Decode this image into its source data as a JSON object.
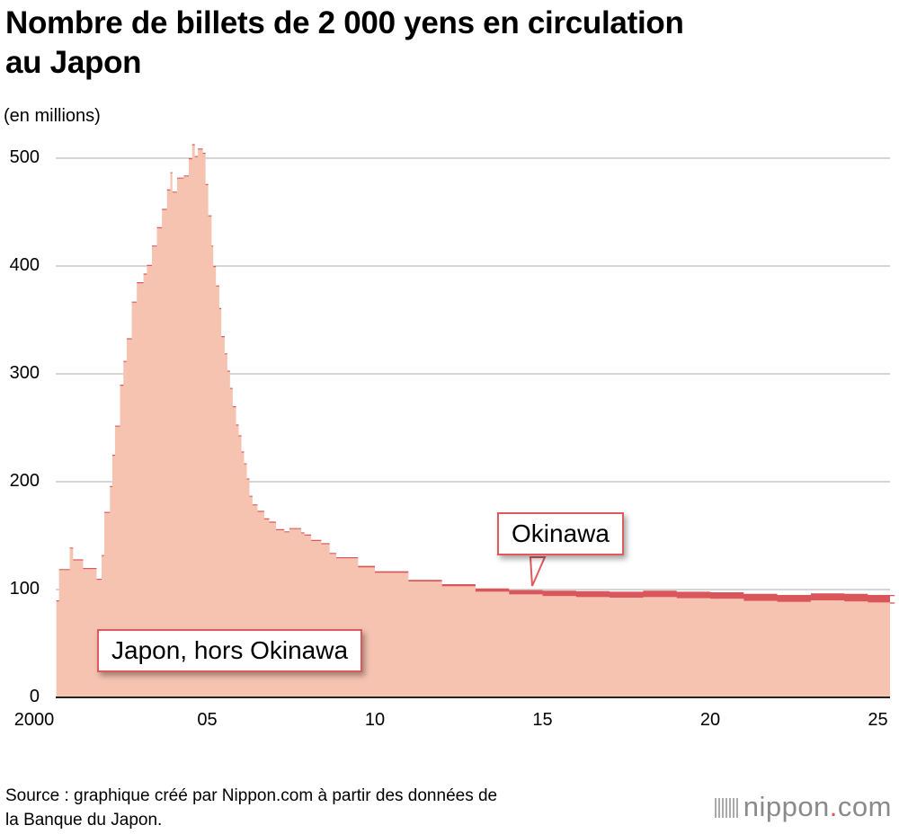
{
  "chart_data": {
    "type": "area",
    "stacked": true,
    "title": "Nombre de billets de 2 000 yens en circulation au Japon",
    "ylabel": "(en millions)",
    "ylim": [
      0,
      520
    ],
    "yticks": [
      "0",
      "100",
      "200",
      "300",
      "400",
      "500"
    ],
    "xticks": [
      "2000",
      "05",
      "10",
      "15",
      "20",
      "25"
    ],
    "xtick_values": [
      2000,
      2005,
      2010,
      2015,
      2020,
      2025
    ],
    "xlim": [
      2000,
      2025.5
    ],
    "grid": true,
    "x": [
      2000.5,
      2000.58,
      2000.75,
      2000.9,
      2001,
      2001.3,
      2001.7,
      2001.85,
      2001.93,
      2002.1,
      2002.17,
      2002.25,
      2002.4,
      2002.5,
      2002.6,
      2002.75,
      2002.9,
      2003.1,
      2003.2,
      2003.35,
      2003.5,
      2003.65,
      2003.8,
      2003.9,
      2003.96,
      2004.1,
      2004.3,
      2004.45,
      2004.55,
      2004.63,
      2004.72,
      2004.87,
      2004.95,
      2005.03,
      2005.13,
      2005.18,
      2005.26,
      2005.36,
      2005.42,
      2005.52,
      2005.6,
      2005.68,
      2005.76,
      2005.86,
      2005.94,
      2006.02,
      2006.1,
      2006.18,
      2006.26,
      2006.35,
      2006.5,
      2006.7,
      2006.85,
      2007.05,
      2007.3,
      2007.45,
      2007.8,
      2007.9,
      2008.1,
      2008.4,
      2008.65,
      2008.85,
      2009.5,
      2010,
      2011,
      2012,
      2013,
      2014,
      2015,
      2016,
      2017,
      2018,
      2019,
      2020,
      2021,
      2022,
      2023,
      2024,
      2024.7,
      2025.5
    ],
    "series": [
      {
        "name": "Japon, hors Okinawa",
        "color": "#f6c3b0",
        "values": [
          89,
          118,
          118,
          138,
          127,
          119,
          109,
          131,
          171,
          195,
          224,
          251,
          289,
          311,
          332,
          366,
          384,
          392,
          400,
          418,
          435,
          452,
          470,
          486,
          468,
          481,
          483,
          499,
          512,
          501,
          508,
          504,
          475,
          446,
          418,
          399,
          381,
          360,
          334,
          318,
          302,
          286,
          269,
          252,
          242,
          227,
          216,
          202,
          186,
          178,
          172,
          165,
          162,
          155,
          153,
          156,
          152,
          150,
          145,
          142,
          133,
          129,
          120.5,
          115.5,
          107.5,
          103,
          98,
          95.5,
          94,
          93,
          92.5,
          93,
          92,
          91.5,
          89.5,
          88.5,
          90,
          89,
          88,
          87
        ]
      },
      {
        "name": "Okinawa",
        "color": "#d9575a",
        "values": [
          1,
          1,
          1,
          1,
          1,
          1,
          1,
          1,
          1,
          1,
          1,
          1,
          1,
          1,
          1,
          1,
          1,
          1,
          1,
          1,
          1,
          1,
          1,
          1,
          1,
          1,
          1,
          1,
          1,
          1,
          1,
          1,
          1,
          1,
          1,
          1,
          1,
          1,
          1,
          1,
          1,
          1,
          1,
          1,
          1,
          1,
          1,
          1,
          1,
          1,
          1,
          1,
          1,
          1,
          1,
          1,
          1,
          1,
          1,
          1,
          1,
          1,
          1.5,
          1.5,
          1.5,
          2,
          3,
          4,
          5,
          5.5,
          5.5,
          6,
          6,
          6,
          6.5,
          6.5,
          6.5,
          7,
          7,
          7
        ]
      }
    ],
    "source": "Source : graphique créé par Nippon.com à partir des données de la Banque du Japon.",
    "logo": "nippon.com"
  },
  "title_line1": "Nombre de billets de 2 000 yens en circulation",
  "title_line2": "au Japon",
  "source_line1": "Source : graphique créé par Nippon.com à partir des données de",
  "source_line2": "la Banque du Japon.",
  "logo": {
    "name": "nippon",
    "dot": ".",
    "tld": "com"
  }
}
